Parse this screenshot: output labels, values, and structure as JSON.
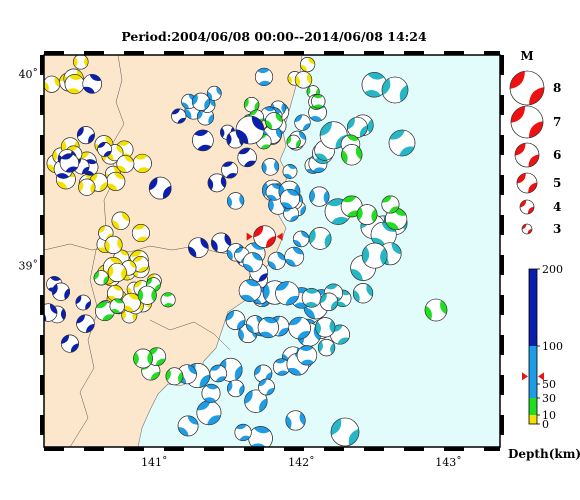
{
  "title": "Period:2004/06/08 00:00--2014/06/08 14:24",
  "axes": {
    "lon_ticks": [
      {
        "value": 141,
        "label": "141˚"
      },
      {
        "value": 142,
        "label": "142˚"
      },
      {
        "value": 143,
        "label": "143˚"
      }
    ],
    "lat_ticks": [
      {
        "value": 40,
        "label": "40˚"
      },
      {
        "value": 39,
        "label": "39˚"
      }
    ]
  },
  "magnitude_legend": {
    "title": "M",
    "items": [
      {
        "label": "8",
        "value": 8
      },
      {
        "label": "7",
        "value": 7
      },
      {
        "label": "6",
        "value": 6
      },
      {
        "label": "5",
        "value": 5
      },
      {
        "label": "4",
        "value": 4
      },
      {
        "label": "3",
        "value": 3
      }
    ]
  },
  "depth_scale": {
    "title": "Depth(km)",
    "ticks": [
      {
        "value": 200,
        "label": "200"
      },
      {
        "value": 100,
        "label": "100"
      },
      {
        "value": 50,
        "label": "50"
      },
      {
        "value": 30,
        "label": "30"
      },
      {
        "value": 10,
        "label": "10"
      },
      {
        "value": 0,
        "label": "0"
      }
    ],
    "marker_value": 60
  },
  "colors": {
    "land": "#fce6cc",
    "sea": "#e2fbfb",
    "depth_0_10": "#f5e100",
    "depth_10_30": "#22dd22",
    "depth_30_100": "#1e9de6",
    "depth_100_200": "#0a1fb0",
    "deep_blue_mid": "#27b6c6",
    "highlight": "#ee1111"
  },
  "chart_data": {
    "type": "scatter",
    "description_units": "lon (deg E), lat (deg N), magnitude, depth (km)",
    "lon_range": [
      140.25,
      143.35
    ],
    "lat_range": [
      38.05,
      40.1
    ],
    "highlighted_event": {
      "lon": 141.75,
      "lat": 39.15,
      "magnitude": 5,
      "depth": 60
    }
  }
}
